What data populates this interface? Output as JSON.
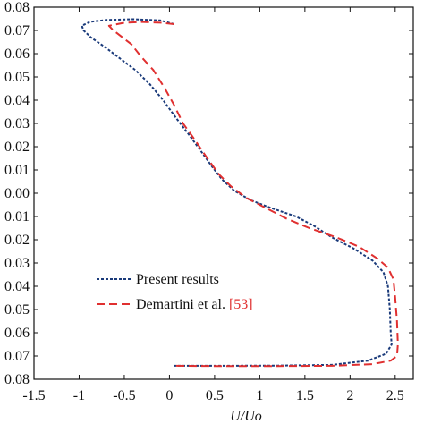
{
  "chart_data": {
    "type": "line",
    "title": "",
    "xlabel": "U/Uo",
    "ylabel": "",
    "xlim": [
      -1.5,
      2.7
    ],
    "ylim": [
      -0.08,
      0.08
    ],
    "x_ticks": [
      -1.5,
      -1,
      -0.5,
      0,
      0.5,
      1,
      1.5,
      2,
      2.5
    ],
    "x_tick_labels": [
      "-1.5",
      "-1",
      "-0.5",
      "0",
      "0.5",
      "1",
      "1.5",
      "2",
      "2.5"
    ],
    "y_ticks": [
      0.08,
      0.07,
      0.06,
      0.05,
      0.04,
      0.03,
      0.02,
      0.01,
      0.0,
      -0.01,
      -0.02,
      -0.03,
      -0.04,
      -0.05,
      -0.06,
      -0.07,
      -0.08
    ],
    "y_tick_labels": [
      "0.08",
      "0.07",
      "0.06",
      "0.05",
      "0.04",
      "0.03",
      "0.02",
      "0.01",
      "0.00",
      "0.01",
      "0.02",
      "0.03",
      "0.04",
      "0.05",
      "0.06",
      "0.07",
      "0.08"
    ],
    "grid": false,
    "legend_position": "lower-left",
    "series": [
      {
        "name": "Present results",
        "legend_label": "Present results",
        "color": "#1a3a7a",
        "style": "dotted",
        "points": [
          [
            0.05,
            0.0727
          ],
          [
            -0.1,
            0.0743
          ],
          [
            -0.4,
            0.0748
          ],
          [
            -0.7,
            0.0745
          ],
          [
            -0.88,
            0.0737
          ],
          [
            -0.97,
            0.072
          ],
          [
            -0.95,
            0.07
          ],
          [
            -0.87,
            0.067
          ],
          [
            -0.72,
            0.063
          ],
          [
            -0.55,
            0.058
          ],
          [
            -0.38,
            0.053
          ],
          [
            -0.22,
            0.047
          ],
          [
            -0.07,
            0.04
          ],
          [
            0.08,
            0.032
          ],
          [
            0.22,
            0.025
          ],
          [
            0.35,
            0.018
          ],
          [
            0.48,
            0.011
          ],
          [
            0.58,
            0.006
          ],
          [
            0.72,
            0.001
          ],
          [
            0.9,
            -0.003
          ],
          [
            1.1,
            -0.006
          ],
          [
            1.4,
            -0.01
          ],
          [
            1.6,
            -0.014
          ],
          [
            1.8,
            -0.019
          ],
          [
            2.05,
            -0.024
          ],
          [
            2.25,
            -0.029
          ],
          [
            2.37,
            -0.034
          ],
          [
            2.42,
            -0.04
          ],
          [
            2.44,
            -0.05
          ],
          [
            2.45,
            -0.06
          ],
          [
            2.46,
            -0.065
          ],
          [
            2.4,
            -0.069
          ],
          [
            2.2,
            -0.072
          ],
          [
            1.8,
            -0.0738
          ],
          [
            1.2,
            -0.0741
          ],
          [
            0.5,
            -0.0742
          ],
          [
            0.05,
            -0.0742
          ]
        ]
      },
      {
        "name": "Demartini et al. [53]",
        "legend_label": "Demartini et al.",
        "legend_ref": "[53]",
        "color": "#e03030",
        "style": "dashed",
        "points": [
          [
            0.05,
            0.0727
          ],
          [
            -0.1,
            0.0733
          ],
          [
            -0.3,
            0.0736
          ],
          [
            -0.5,
            0.0733
          ],
          [
            -0.67,
            0.072
          ],
          [
            -0.62,
            0.07
          ],
          [
            -0.52,
            0.067
          ],
          [
            -0.42,
            0.064
          ],
          [
            -0.32,
            0.059
          ],
          [
            -0.18,
            0.053
          ],
          [
            -0.05,
            0.045
          ],
          [
            0.05,
            0.038
          ],
          [
            0.15,
            0.03
          ],
          [
            0.28,
            0.023
          ],
          [
            0.42,
            0.015
          ],
          [
            0.55,
            0.008
          ],
          [
            0.68,
            0.003
          ],
          [
            0.85,
            -0.002
          ],
          [
            1.05,
            -0.006
          ],
          [
            1.3,
            -0.011
          ],
          [
            1.55,
            -0.015
          ],
          [
            1.85,
            -0.019
          ],
          [
            2.1,
            -0.023
          ],
          [
            2.3,
            -0.028
          ],
          [
            2.42,
            -0.032
          ],
          [
            2.48,
            -0.037
          ],
          [
            2.5,
            -0.045
          ],
          [
            2.52,
            -0.055
          ],
          [
            2.53,
            -0.065
          ],
          [
            2.52,
            -0.07
          ],
          [
            2.45,
            -0.072
          ],
          [
            2.25,
            -0.0735
          ],
          [
            1.8,
            -0.0742
          ],
          [
            1.2,
            -0.0743
          ],
          [
            0.5,
            -0.0743
          ],
          [
            0.05,
            -0.0742
          ]
        ]
      }
    ]
  }
}
